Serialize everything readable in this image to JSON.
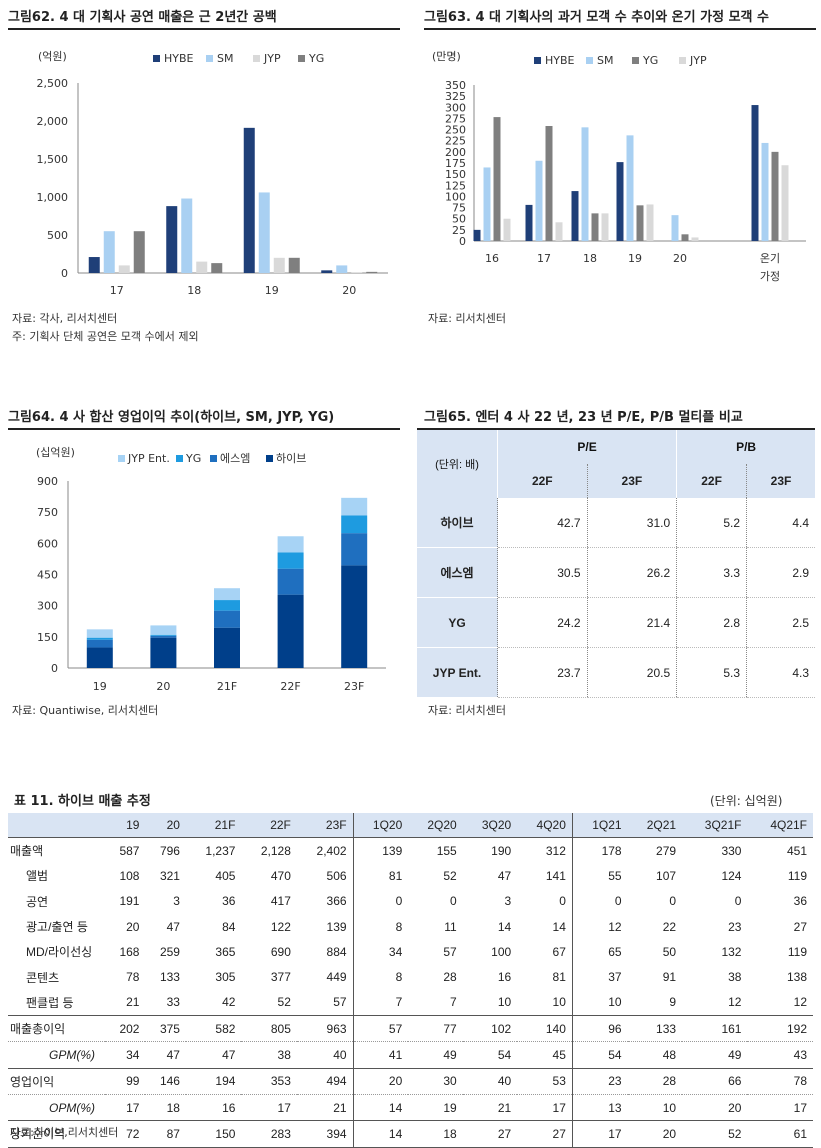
{
  "fig62": {
    "title": "그림62. 4 대 기획사 공연 매출은 근 2년간 공백",
    "source": "자료: 각사, 리서치센터",
    "note": "주: 기획사 단체 공연은 모객 수에서 제외"
  },
  "fig63": {
    "title": "그림63. 4 대 기획사의 과거 모객 수 추이와 온기 가정 모객 수",
    "source": "자료: 리서치센터"
  },
  "fig64": {
    "title": "그림64. 4 사 합산 영업이익 추이(하이브, SM, JYP, YG)",
    "source": "자료: Quantiwise, 리서치센터"
  },
  "fig65": {
    "title": "그림65. 엔터 4 사 22 년, 23 년 P/E, P/B 멀티플 비교",
    "unit_label": "(단위: 배)",
    "group_pe": "P/E",
    "group_pb": "P/B",
    "col_22f": "22F",
    "col_23f": "23F",
    "rows": [
      {
        "name": "하이브",
        "pe22": "42.7",
        "pe23": "31.0",
        "pb22": "5.2",
        "pb23": "4.4"
      },
      {
        "name": "에스엠",
        "pe22": "30.5",
        "pe23": "26.2",
        "pb22": "3.3",
        "pb23": "2.9"
      },
      {
        "name": "YG",
        "pe22": "24.2",
        "pe23": "21.4",
        "pb22": "2.8",
        "pb23": "2.5"
      },
      {
        "name": "JYP Ent.",
        "pe22": "23.7",
        "pe23": "20.5",
        "pb22": "5.3",
        "pb23": "4.3"
      }
    ],
    "source": "자료: 리서치센터"
  },
  "table11": {
    "title": "표 11.  하이브 매출 추정",
    "unit": "(단위: 십억원)",
    "columns": [
      "19",
      "20",
      "21F",
      "22F",
      "23F",
      "1Q20",
      "2Q20",
      "3Q20",
      "4Q20",
      "1Q21",
      "2Q21",
      "3Q21F",
      "4Q21F"
    ],
    "rows": [
      {
        "label": "매출액",
        "style": "lbl",
        "values": [
          "587",
          "796",
          "1,237",
          "2,128",
          "2,402",
          "139",
          "155",
          "190",
          "312",
          "178",
          "279",
          "330",
          "451"
        ]
      },
      {
        "label": "앨범",
        "style": "sub",
        "values": [
          "108",
          "321",
          "405",
          "470",
          "506",
          "81",
          "52",
          "47",
          "141",
          "55",
          "107",
          "124",
          "119"
        ]
      },
      {
        "label": "공연",
        "style": "sub",
        "values": [
          "191",
          "3",
          "36",
          "417",
          "366",
          "0",
          "0",
          "3",
          "0",
          "0",
          "0",
          "0",
          "36"
        ]
      },
      {
        "label": "광고/출연 등",
        "style": "sub",
        "values": [
          "20",
          "47",
          "84",
          "122",
          "139",
          "8",
          "11",
          "14",
          "14",
          "12",
          "22",
          "23",
          "27"
        ]
      },
      {
        "label": "MD/라이선싱",
        "style": "sub",
        "values": [
          "168",
          "259",
          "365",
          "690",
          "884",
          "34",
          "57",
          "100",
          "67",
          "65",
          "50",
          "132",
          "119"
        ]
      },
      {
        "label": "콘텐츠",
        "style": "sub",
        "values": [
          "78",
          "133",
          "305",
          "377",
          "449",
          "8",
          "28",
          "16",
          "81",
          "37",
          "91",
          "38",
          "138"
        ]
      },
      {
        "label": "팬클럽 등",
        "style": "sub",
        "values": [
          "21",
          "33",
          "42",
          "52",
          "57",
          "7",
          "7",
          "10",
          "10",
          "10",
          "9",
          "12",
          "12"
        ]
      },
      {
        "label": "매출총이익",
        "style": "lbl",
        "values": [
          "202",
          "375",
          "582",
          "805",
          "963",
          "57",
          "77",
          "102",
          "140",
          "96",
          "133",
          "161",
          "192"
        ]
      },
      {
        "label": "GPM(%)",
        "style": "italic",
        "values": [
          "34",
          "47",
          "47",
          "38",
          "40",
          "41",
          "49",
          "54",
          "45",
          "54",
          "48",
          "49",
          "43"
        ]
      },
      {
        "label": "영업이익",
        "style": "lbl",
        "values": [
          "99",
          "146",
          "194",
          "353",
          "494",
          "20",
          "30",
          "40",
          "53",
          "23",
          "28",
          "66",
          "78"
        ]
      },
      {
        "label": "OPM(%)",
        "style": "italic",
        "values": [
          "17",
          "18",
          "16",
          "17",
          "21",
          "14",
          "19",
          "21",
          "17",
          "13",
          "10",
          "20",
          "17"
        ]
      },
      {
        "label": "당기순이익",
        "style": "lbl",
        "values": [
          "72",
          "87",
          "150",
          "283",
          "394",
          "14",
          "18",
          "27",
          "27",
          "17",
          "20",
          "52",
          "61"
        ]
      }
    ],
    "source": "자료:하이브,리서치센터"
  },
  "colors": {
    "hybe": "#1f3f78",
    "sm": "#a9d0f2",
    "jyp": "#d9d9d9",
    "yg": "#7f7f7f",
    "stack_hybe": "#003f8a",
    "stack_sm": "#1f6fbf",
    "stack_yg": "#1e9be0",
    "stack_jyp": "#a7d3f5",
    "header_bg": "#d9e4f3"
  },
  "chart_data": [
    {
      "type": "bar",
      "ylabel": "(억원)",
      "ylim": [
        0,
        2500
      ],
      "yticks": [
        "0",
        "500",
        "1,000",
        "1,500",
        "2,000",
        "2,500"
      ],
      "categories": [
        "17",
        "18",
        "19",
        "20"
      ],
      "legend_position": "top",
      "series": [
        {
          "name": "HYBE",
          "values": [
            210,
            880,
            1910,
            35
          ]
        },
        {
          "name": "SM",
          "values": [
            550,
            980,
            1060,
            100
          ]
        },
        {
          "name": "JYP",
          "values": [
            100,
            150,
            200,
            10
          ]
        },
        {
          "name": "YG",
          "values": [
            550,
            130,
            200,
            15
          ]
        }
      ]
    },
    {
      "type": "bar",
      "ylabel": "(만명)",
      "ylim": [
        0,
        350
      ],
      "yticks": [
        "0",
        "25",
        "50",
        "75",
        "100",
        "125",
        "150",
        "175",
        "200",
        "225",
        "250",
        "275",
        "300",
        "325",
        "350"
      ],
      "categories": [
        "16",
        "17",
        "18",
        "19",
        "20",
        "온기\n가정"
      ],
      "legend_position": "top",
      "series": [
        {
          "name": "HYBE",
          "values": [
            25,
            81,
            112,
            177,
            0,
            305
          ]
        },
        {
          "name": "SM",
          "values": [
            165,
            180,
            255,
            237,
            58,
            220
          ]
        },
        {
          "name": "YG",
          "values": [
            278,
            258,
            62,
            80,
            15,
            200
          ]
        },
        {
          "name": "JYP",
          "values": [
            50,
            42,
            62,
            82,
            8,
            170
          ]
        }
      ]
    },
    {
      "type": "bar",
      "stacked": true,
      "ylabel": "(십억원)",
      "ylim": [
        0,
        900
      ],
      "yticks": [
        "0",
        "150",
        "300",
        "450",
        "600",
        "750",
        "900"
      ],
      "categories": [
        "19",
        "20",
        "21F",
        "22F",
        "23F"
      ],
      "legend_position": "top",
      "series": [
        {
          "name": "하이브",
          "values": [
            99,
            146,
            194,
            353,
            494
          ]
        },
        {
          "name": "에스엠",
          "values": [
            37,
            9,
            82,
            125,
            155
          ]
        },
        {
          "name": "YG",
          "values": [
            10,
            5,
            51,
            78,
            85
          ]
        },
        {
          "name": "JYP Ent.",
          "values": [
            40,
            45,
            57,
            78,
            85
          ]
        }
      ]
    }
  ]
}
